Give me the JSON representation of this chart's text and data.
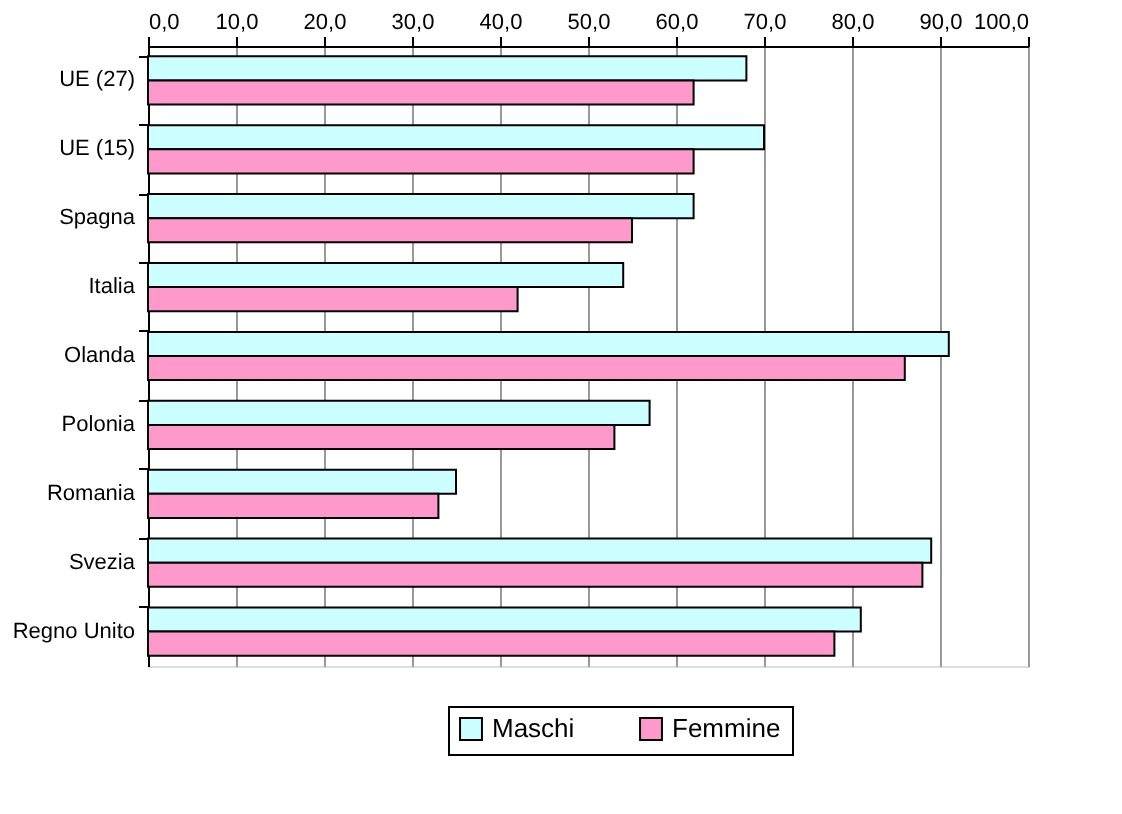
{
  "chart_data": {
    "type": "bar",
    "orientation": "horizontal",
    "categories": [
      "UE (27)",
      "UE (15)",
      "Spagna",
      "Italia",
      "Olanda",
      "Polonia",
      "Romania",
      "Svezia",
      "Regno Unito"
    ],
    "series": [
      {
        "name": "Maschi",
        "color": "#ccffff",
        "values": [
          68,
          70,
          62,
          54,
          91,
          57,
          35,
          89,
          81
        ]
      },
      {
        "name": "Femmine",
        "color": "#ff99cc",
        "values": [
          62,
          62,
          55,
          42,
          86,
          53,
          33,
          88,
          78
        ]
      }
    ],
    "xlim": [
      0,
      100
    ],
    "xticks": [
      {
        "value": 0,
        "label": "0,0"
      },
      {
        "value": 10,
        "label": "10,0"
      },
      {
        "value": 20,
        "label": "20,0"
      },
      {
        "value": 30,
        "label": "30,0"
      },
      {
        "value": 40,
        "label": "40,0"
      },
      {
        "value": 50,
        "label": "50,0"
      },
      {
        "value": 60,
        "label": "60,0"
      },
      {
        "value": 70,
        "label": "70,0"
      },
      {
        "value": 80,
        "label": "80,0"
      },
      {
        "value": 90,
        "label": "90,0"
      },
      {
        "value": 100,
        "label": "100,0"
      }
    ],
    "grid": "x",
    "legend": "bottom"
  }
}
